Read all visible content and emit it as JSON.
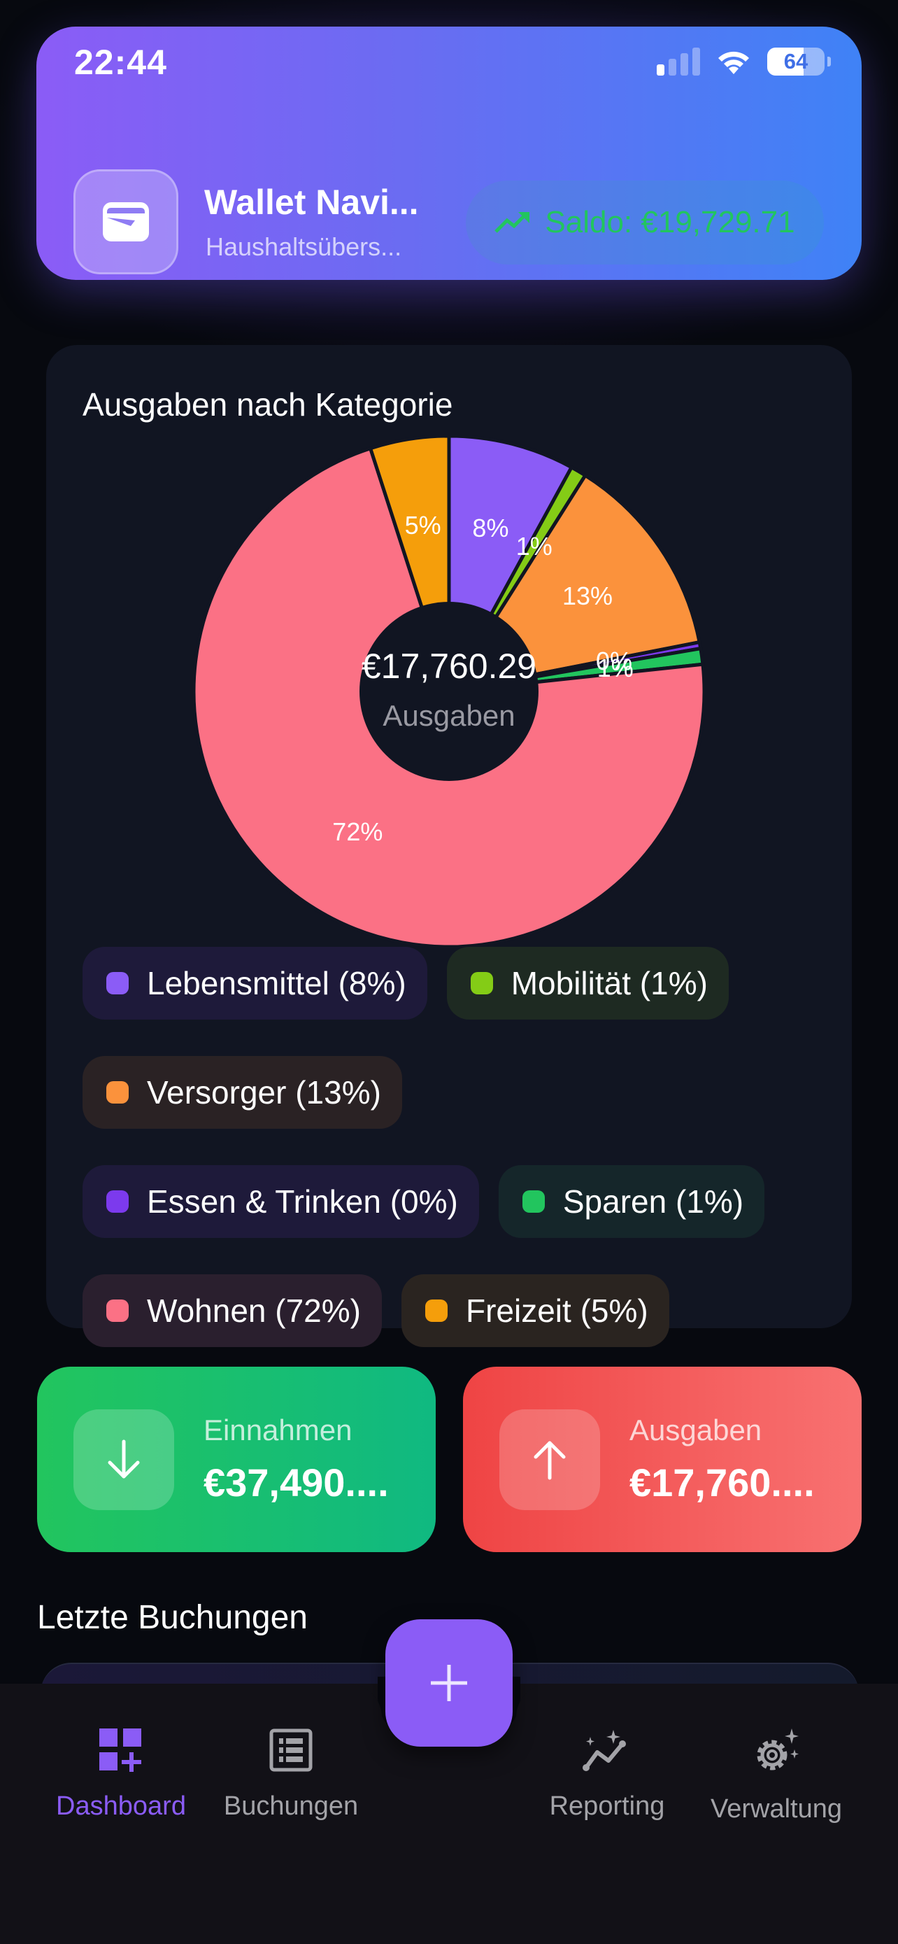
{
  "status_bar": {
    "time": "22:44",
    "battery": "64"
  },
  "header": {
    "app_title": "Wallet Navi...",
    "app_subtitle": "Haushaltsübers...",
    "saldo": "Saldo: €19,729.71",
    "icons": {
      "app": "wallet-icon",
      "saldo": "trending-up-icon"
    },
    "colors": {
      "gradient_start": "#8b5cf6",
      "gradient_end": "#3f82f6",
      "saldo_text": "#22c55e"
    }
  },
  "chart_card": {
    "title": "Ausgaben nach Kategorie",
    "center_amount": "€17,760.29",
    "center_label": "Ausgaben"
  },
  "chart_data": {
    "type": "pie",
    "title": "Ausgaben nach Kategorie",
    "subtitle": "€17,760.29 Ausgaben",
    "donut": true,
    "start_angle": "top, clockwise",
    "categories": [
      "Lebensmittel",
      "Mobilität",
      "Versorger",
      "Essen & Trinken",
      "Sparen",
      "Wohnen",
      "Freizeit"
    ],
    "values": [
      8,
      1,
      13,
      0,
      1,
      72,
      5
    ],
    "labels": [
      "8%",
      "1%",
      "13%",
      "0%",
      "1%",
      "72%",
      "5%"
    ],
    "colors": [
      "#8b5cf6",
      "#84cc16",
      "#fb923c",
      "#7c3aed",
      "#22c55e",
      "#fb7185",
      "#f59e0b"
    ],
    "legend_position": "bottom"
  },
  "legend": [
    {
      "label": "Lebensmittel (8%)",
      "color": "#8b5cf6",
      "bg": "#1e1a3a"
    },
    {
      "label": "Mobilität (1%)",
      "color": "#84cc16",
      "bg": "#1e2a22"
    },
    {
      "label": "Versorger (13%)",
      "color": "#fb923c",
      "bg": "#2a2224"
    },
    {
      "label": "Essen & Trinken (0%)",
      "color": "#7c3aed",
      "bg": "#1e1a3a"
    },
    {
      "label": "Sparen (1%)",
      "color": "#22c55e",
      "bg": "#15262a"
    },
    {
      "label": "Wohnen (72%)",
      "color": "#fb7185",
      "bg": "#2a1f2e"
    },
    {
      "label": "Freizeit (5%)",
      "color": "#f59e0b",
      "bg": "#2a2420"
    }
  ],
  "stats": {
    "income": {
      "label": "Einnahmen",
      "value": "€37,490....",
      "icon": "arrow-down-icon"
    },
    "expense": {
      "label": "Ausgaben",
      "value": "€17,760....",
      "icon": "arrow-up-icon"
    }
  },
  "recent": {
    "title": "Letzte Buchungen"
  },
  "fab": {
    "icon": "plus-icon"
  },
  "nav": [
    {
      "label": "Dashboard",
      "icon": "dashboard-icon",
      "active": true
    },
    {
      "label": "Buchungen",
      "icon": "list-icon",
      "active": false
    },
    {
      "label": "Reporting",
      "icon": "sparkle-chart-icon",
      "active": false
    },
    {
      "label": "Verwaltung",
      "icon": "sparkle-gear-icon",
      "active": false
    }
  ]
}
